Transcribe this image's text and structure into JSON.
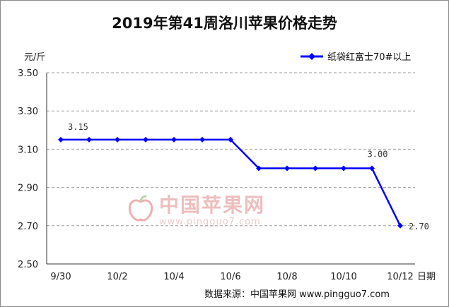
{
  "chart_data": {
    "type": "line",
    "title": "2019年第41周洛川苹果价格走势",
    "ylabel": "元/斤",
    "xlabel": "日期",
    "ylim": [
      2.5,
      3.5
    ],
    "y_ticks": [
      "3.50",
      "3.30",
      "3.10",
      "2.90",
      "2.70",
      "2.50"
    ],
    "y_tick_values": [
      3.5,
      3.3,
      3.1,
      2.9,
      2.7,
      2.5
    ],
    "x_tick_labels": [
      "9/30",
      "10/2",
      "10/4",
      "10/6",
      "10/8",
      "10/10",
      "10/12"
    ],
    "x": [
      "9/30",
      "10/1",
      "10/2",
      "10/3",
      "10/4",
      "10/5",
      "10/6",
      "10/7",
      "10/8",
      "10/9",
      "10/10",
      "10/11",
      "10/12"
    ],
    "series": [
      {
        "name": "纸袋红富士70#以上",
        "color": "#0000ff",
        "values": [
          3.15,
          3.15,
          3.15,
          3.15,
          3.15,
          3.15,
          3.15,
          3.0,
          3.0,
          3.0,
          3.0,
          3.0,
          2.7
        ]
      }
    ],
    "data_labels": [
      {
        "index": 0,
        "text": "3.15"
      },
      {
        "index": 11,
        "text": "3.00"
      },
      {
        "index": 12,
        "text": "2.70"
      }
    ],
    "legend_position": "top-right",
    "grid": "horizontal-dashed"
  },
  "watermark": {
    "text": "中国苹果网",
    "url": "www.pingguo7.com"
  },
  "source_note": "数据来源：中国苹果网 www.pingguo7.com"
}
